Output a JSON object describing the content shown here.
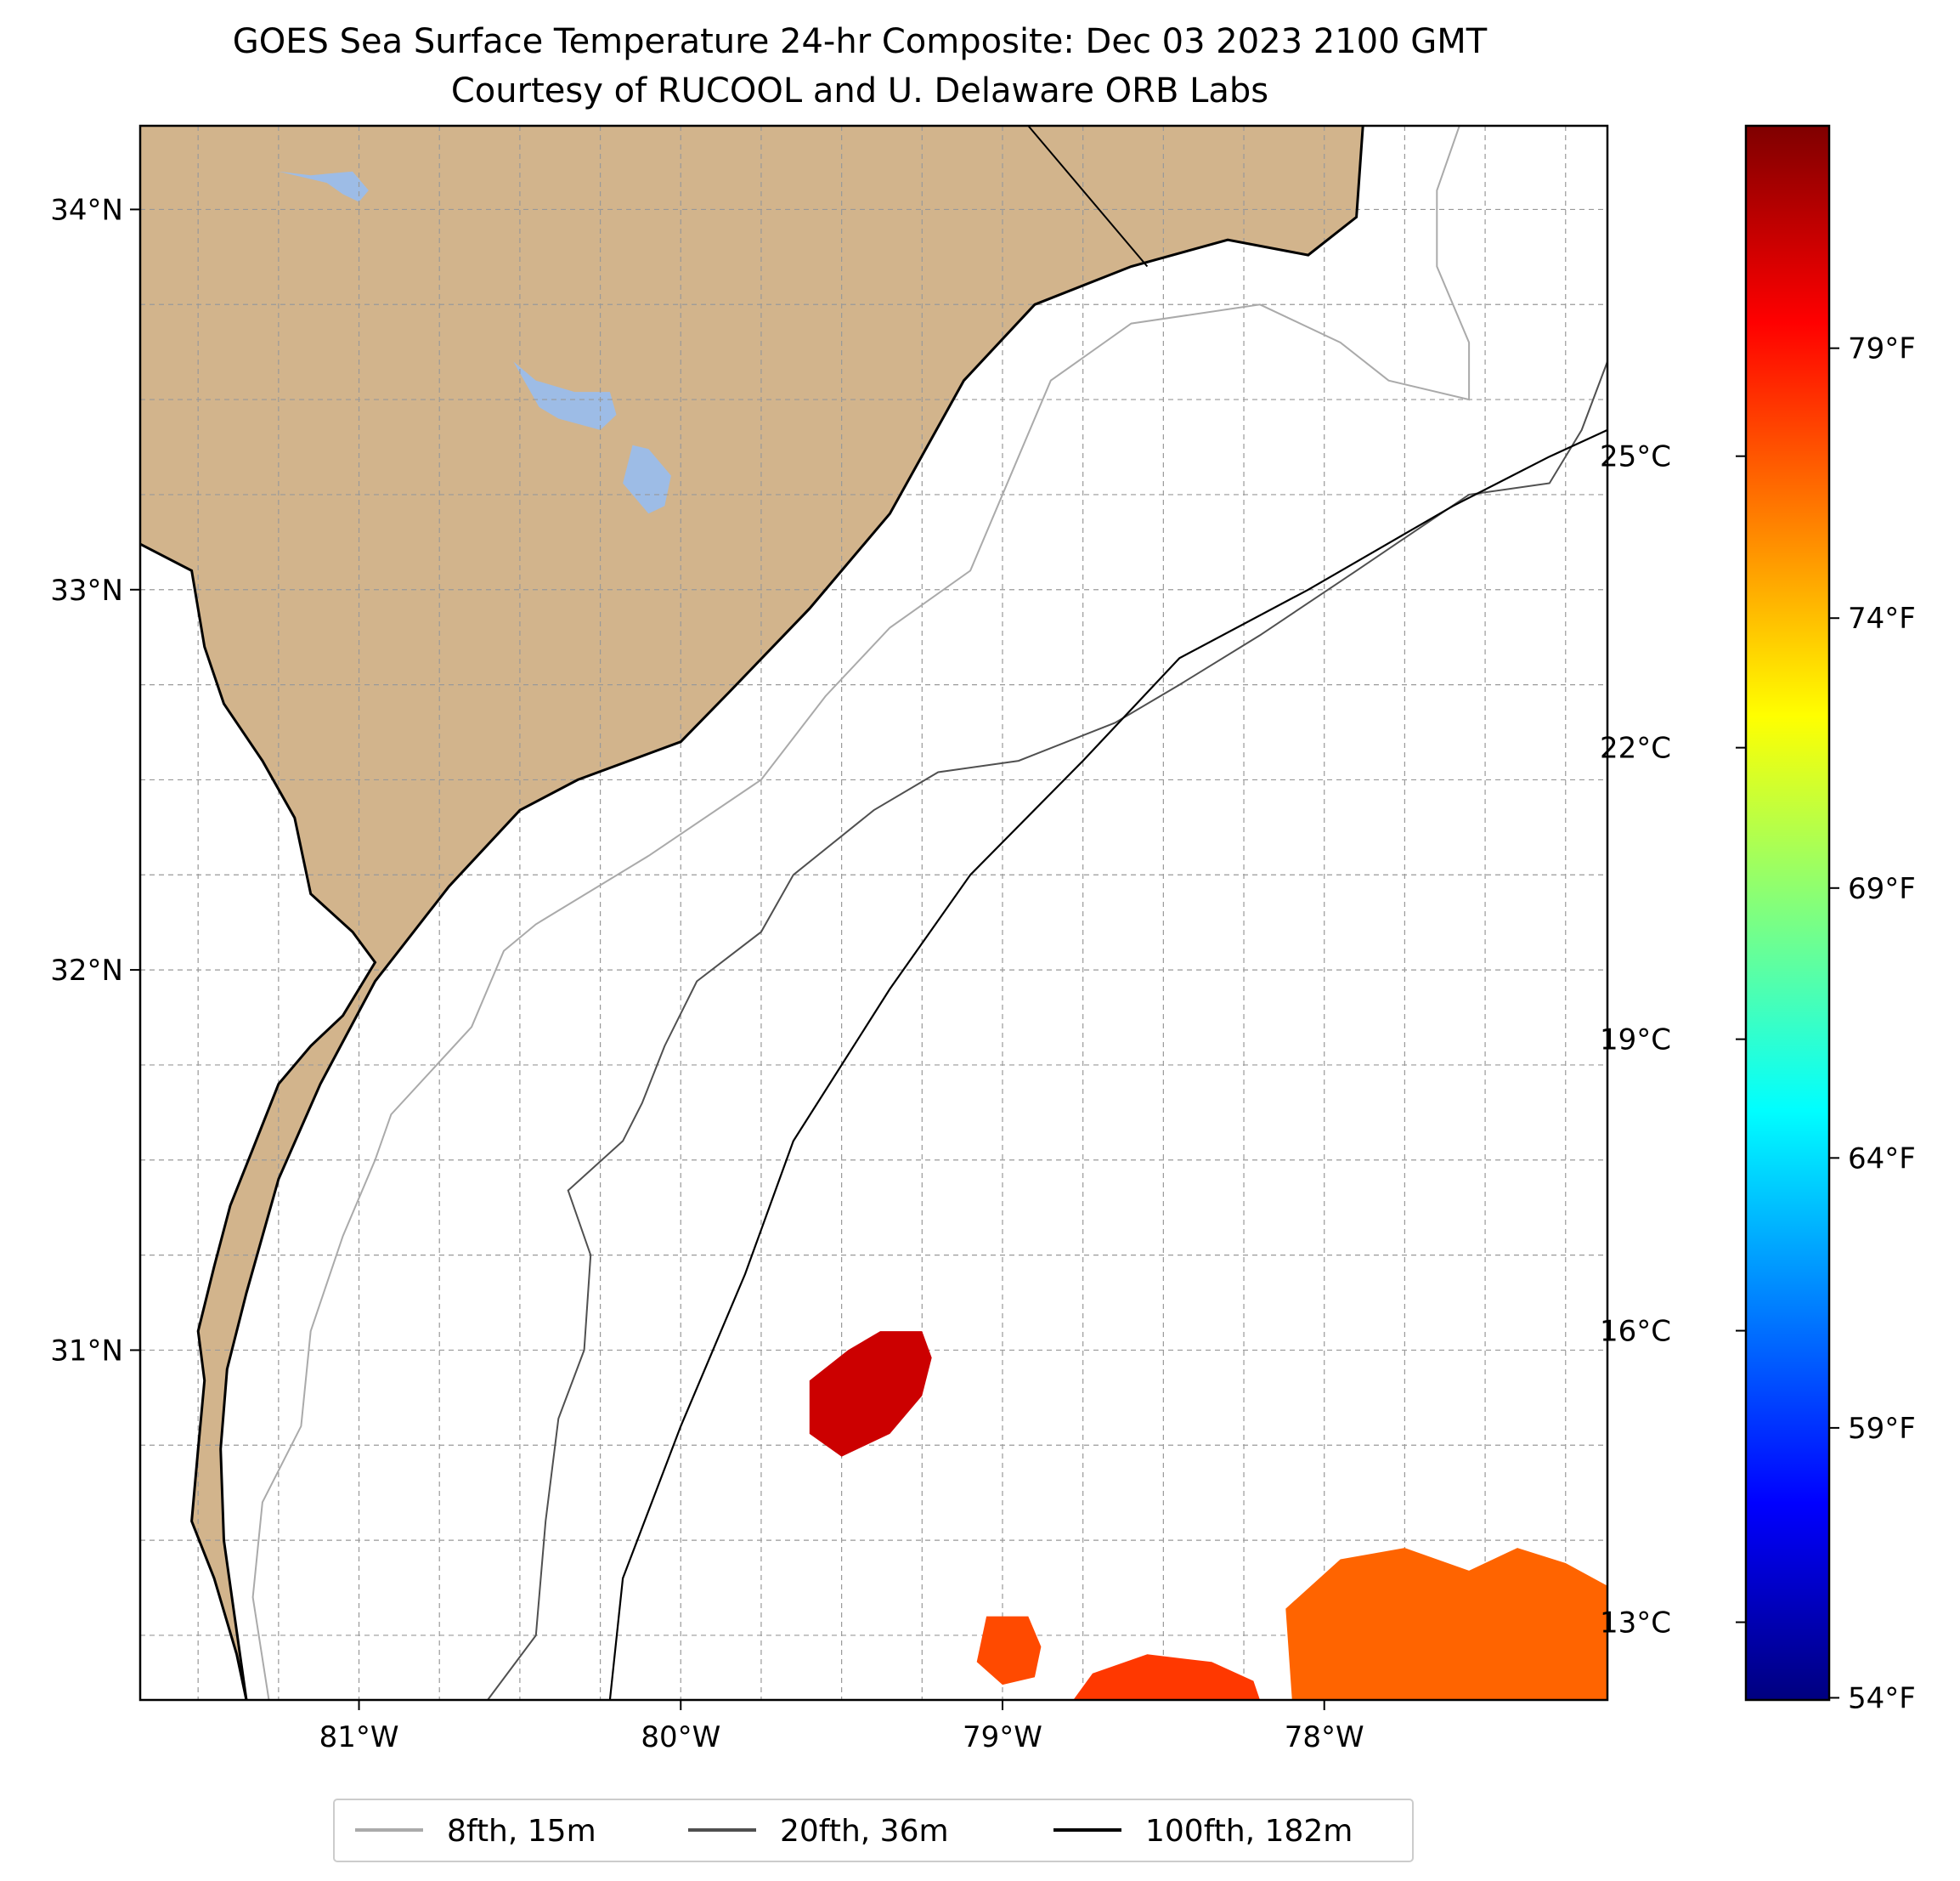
{
  "title": {
    "line1": "GOES Sea Surface Temperature 24-hr Composite: Dec 03 2023 2100 GMT",
    "line2": "Courtesy of RUCOOL and U. Delaware ORB Labs"
  },
  "map": {
    "lon_range": [
      -81.68,
      -77.12
    ],
    "lat_range": [
      30.08,
      34.22
    ],
    "land_color": "#d2b48c",
    "lake_color": "#9dbce6",
    "ocean_color": "#ffffff",
    "grid": "dashed, 0.25° spacing",
    "lon_ticks": [
      {
        "lon": -81,
        "label": "81°W"
      },
      {
        "lon": -80,
        "label": "80°W"
      },
      {
        "lon": -79,
        "label": "79°W"
      },
      {
        "lon": -78,
        "label": "78°W"
      }
    ],
    "lat_ticks": [
      {
        "lat": 34,
        "label": "34°N"
      },
      {
        "lat": 33,
        "label": "33°N"
      },
      {
        "lat": 32,
        "label": "32°N"
      },
      {
        "lat": 31,
        "label": "31°N"
      }
    ],
    "coastline": [
      [
        -81.68,
        33.12
      ],
      [
        -81.52,
        33.05
      ],
      [
        -81.48,
        32.85
      ],
      [
        -81.42,
        32.7
      ],
      [
        -81.3,
        32.55
      ],
      [
        -81.2,
        32.4
      ],
      [
        -81.15,
        32.2
      ],
      [
        -81.02,
        32.1
      ],
      [
        -80.95,
        32.02
      ],
      [
        -81.05,
        31.88
      ],
      [
        -81.15,
        31.8
      ],
      [
        -81.25,
        31.7
      ],
      [
        -81.32,
        31.55
      ],
      [
        -81.4,
        31.38
      ],
      [
        -81.45,
        31.22
      ],
      [
        -81.5,
        31.05
      ],
      [
        -81.48,
        30.92
      ],
      [
        -81.5,
        30.74
      ],
      [
        -81.52,
        30.55
      ],
      [
        -81.45,
        30.4
      ],
      [
        -81.38,
        30.2
      ],
      [
        -81.35,
        30.08
      ]
    ],
    "shore": [
      [
        -81.35,
        30.08
      ],
      [
        -81.42,
        30.5
      ],
      [
        -81.43,
        30.74
      ],
      [
        -81.41,
        30.95
      ],
      [
        -81.35,
        31.15
      ],
      [
        -81.25,
        31.45
      ],
      [
        -81.12,
        31.7
      ],
      [
        -80.95,
        31.97
      ],
      [
        -80.72,
        32.22
      ],
      [
        -80.5,
        32.42
      ],
      [
        -80.32,
        32.5
      ],
      [
        -80.0,
        32.6
      ],
      [
        -79.85,
        32.73
      ],
      [
        -79.6,
        32.95
      ],
      [
        -79.35,
        33.2
      ],
      [
        -79.12,
        33.55
      ],
      [
        -78.9,
        33.75
      ],
      [
        -78.6,
        33.85
      ],
      [
        -78.3,
        33.92
      ],
      [
        -78.05,
        33.88
      ],
      [
        -77.9,
        33.98
      ],
      [
        -77.88,
        34.22
      ]
    ],
    "state_line": [
      [
        -78.92,
        34.22
      ],
      [
        -78.55,
        33.85
      ]
    ],
    "lakes": [
      [
        [
          -81.25,
          34.1
        ],
        [
          -81.1,
          34.07
        ],
        [
          -81.05,
          34.04
        ],
        [
          -81.0,
          34.02
        ],
        [
          -80.97,
          34.05
        ],
        [
          -81.02,
          34.1
        ],
        [
          -81.15,
          34.09
        ]
      ],
      [
        [
          -80.52,
          33.6
        ],
        [
          -80.44,
          33.48
        ],
        [
          -80.38,
          33.45
        ],
        [
          -80.25,
          33.42
        ],
        [
          -80.2,
          33.46
        ],
        [
          -80.22,
          33.52
        ],
        [
          -80.33,
          33.52
        ],
        [
          -80.45,
          33.55
        ]
      ],
      [
        [
          -80.15,
          33.38
        ],
        [
          -80.1,
          33.37
        ],
        [
          -80.03,
          33.3
        ],
        [
          -80.05,
          33.22
        ],
        [
          -80.1,
          33.2
        ],
        [
          -80.18,
          33.28
        ]
      ]
    ],
    "isobaths": [
      {
        "label": "8fth, 15m",
        "color": "#aaaaaa",
        "width": 2,
        "points": [
          [
            -81.28,
            30.08
          ],
          [
            -81.33,
            30.35
          ],
          [
            -81.3,
            30.6
          ],
          [
            -81.18,
            30.8
          ],
          [
            -81.15,
            31.05
          ],
          [
            -81.05,
            31.3
          ],
          [
            -80.95,
            31.5
          ],
          [
            -80.9,
            31.62
          ],
          [
            -80.65,
            31.85
          ],
          [
            -80.55,
            32.05
          ],
          [
            -80.45,
            32.12
          ],
          [
            -80.1,
            32.3
          ],
          [
            -79.75,
            32.5
          ],
          [
            -79.55,
            32.72
          ],
          [
            -79.35,
            32.9
          ],
          [
            -79.1,
            33.05
          ],
          [
            -78.95,
            33.35
          ],
          [
            -78.85,
            33.55
          ],
          [
            -78.6,
            33.7
          ],
          [
            -78.2,
            33.75
          ],
          [
            -77.95,
            33.65
          ],
          [
            -77.8,
            33.55
          ],
          [
            -77.55,
            33.5
          ],
          [
            -77.55,
            33.65
          ],
          [
            -77.65,
            33.85
          ],
          [
            -77.65,
            34.05
          ],
          [
            -77.58,
            34.22
          ]
        ]
      },
      {
        "label": "20fth, 36m",
        "color": "#505050",
        "width": 2,
        "points": [
          [
            -80.6,
            30.08
          ],
          [
            -80.45,
            30.25
          ],
          [
            -80.42,
            30.55
          ],
          [
            -80.38,
            30.82
          ],
          [
            -80.3,
            31.0
          ],
          [
            -80.28,
            31.25
          ],
          [
            -80.35,
            31.42
          ],
          [
            -80.18,
            31.55
          ],
          [
            -80.12,
            31.65
          ],
          [
            -80.05,
            31.8
          ],
          [
            -79.95,
            31.97
          ],
          [
            -79.75,
            32.1
          ],
          [
            -79.65,
            32.25
          ],
          [
            -79.4,
            32.42
          ],
          [
            -79.2,
            32.52
          ],
          [
            -78.95,
            32.55
          ],
          [
            -78.65,
            32.65
          ],
          [
            -78.45,
            32.75
          ],
          [
            -78.2,
            32.88
          ],
          [
            -77.9,
            33.05
          ],
          [
            -77.55,
            33.25
          ],
          [
            -77.3,
            33.28
          ],
          [
            -77.2,
            33.42
          ],
          [
            -77.12,
            33.6
          ]
        ]
      },
      {
        "label": "100fth, 182m",
        "color": "#000000",
        "width": 2.2,
        "points": [
          [
            -80.22,
            30.08
          ],
          [
            -80.18,
            30.4
          ],
          [
            -80.0,
            30.8
          ],
          [
            -79.8,
            31.2
          ],
          [
            -79.65,
            31.55
          ],
          [
            -79.35,
            31.95
          ],
          [
            -79.1,
            32.25
          ],
          [
            -78.75,
            32.55
          ],
          [
            -78.45,
            32.82
          ],
          [
            -78.05,
            33.0
          ],
          [
            -77.6,
            33.22
          ],
          [
            -77.3,
            33.35
          ],
          [
            -77.12,
            33.42
          ]
        ]
      }
    ],
    "sst_patches": [
      {
        "color": "#cc0000",
        "points": [
          [
            -79.6,
            30.92
          ],
          [
            -79.48,
            31.0
          ],
          [
            -79.38,
            31.05
          ],
          [
            -79.25,
            31.05
          ],
          [
            -79.22,
            30.98
          ],
          [
            -79.25,
            30.88
          ],
          [
            -79.35,
            30.78
          ],
          [
            -79.5,
            30.72
          ],
          [
            -79.6,
            30.78
          ]
        ]
      },
      {
        "color": "#ff4a00",
        "points": [
          [
            -79.05,
            30.3
          ],
          [
            -78.92,
            30.3
          ],
          [
            -78.88,
            30.22
          ],
          [
            -78.9,
            30.14
          ],
          [
            -79.0,
            30.12
          ],
          [
            -79.08,
            30.18
          ]
        ]
      },
      {
        "color": "#ff3800",
        "points": [
          [
            -78.78,
            30.08
          ],
          [
            -78.72,
            30.15
          ],
          [
            -78.55,
            30.2
          ],
          [
            -78.35,
            30.18
          ],
          [
            -78.22,
            30.13
          ],
          [
            -78.2,
            30.08
          ]
        ]
      },
      {
        "color": "#ff6400",
        "points": [
          [
            -78.1,
            30.08
          ],
          [
            -78.12,
            30.32
          ],
          [
            -77.95,
            30.45
          ],
          [
            -77.75,
            30.48
          ],
          [
            -77.55,
            30.42
          ],
          [
            -77.4,
            30.48
          ],
          [
            -77.25,
            30.44
          ],
          [
            -77.12,
            30.38
          ],
          [
            -77.12,
            30.08
          ]
        ]
      }
    ]
  },
  "colorbar": {
    "colormap": "jet",
    "colors": [
      "#00007f",
      "#0000ff",
      "#007fff",
      "#00ffff",
      "#7fff7f",
      "#ffff00",
      "#ff7f00",
      "#ff0000",
      "#7f0000"
    ],
    "range_c": [
      12.2,
      28.4
    ],
    "celsius_ticks": [
      {
        "value": 13,
        "label": "13°C"
      },
      {
        "value": 16,
        "label": "16°C"
      },
      {
        "value": 19,
        "label": "19°C"
      },
      {
        "value": 22,
        "label": "22°C"
      },
      {
        "value": 25,
        "label": "25°C"
      }
    ],
    "fahrenheit_ticks": [
      {
        "value": 54,
        "label": "54°F"
      },
      {
        "value": 59,
        "label": "59°F"
      },
      {
        "value": 64,
        "label": "64°F"
      },
      {
        "value": 69,
        "label": "69°F"
      },
      {
        "value": 74,
        "label": "74°F"
      },
      {
        "value": 79,
        "label": "79°F"
      }
    ]
  },
  "legend": {
    "entries": [
      {
        "label": "8fth, 15m",
        "color": "#aaaaaa"
      },
      {
        "label": "20fth, 36m",
        "color": "#505050"
      },
      {
        "label": "100fth, 182m",
        "color": "#000000"
      }
    ]
  }
}
